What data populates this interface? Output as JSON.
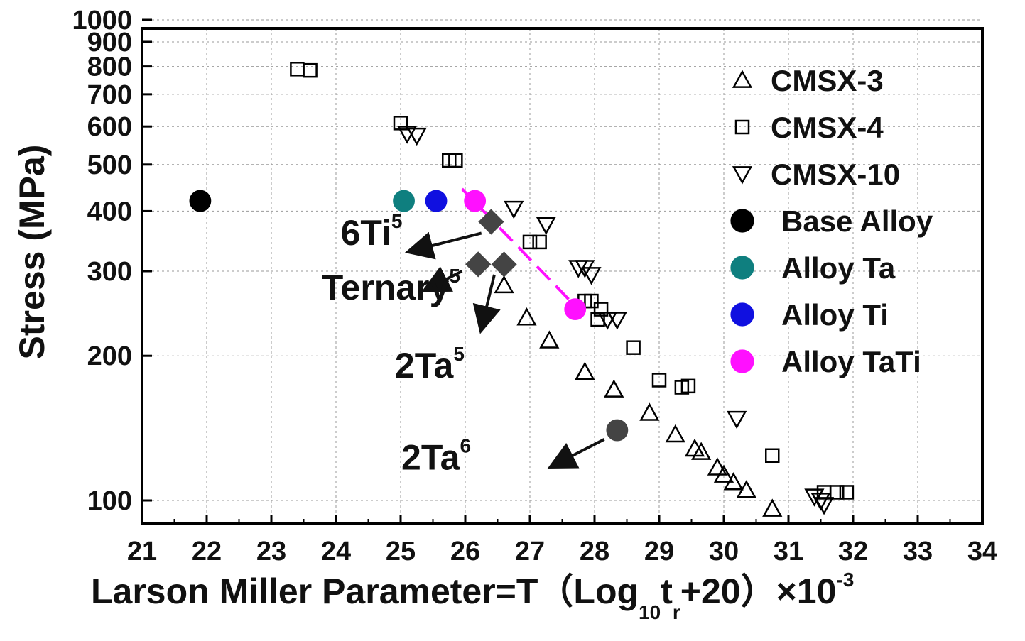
{
  "chart_data": {
    "type": "scatter",
    "xlabel": {
      "main": "Larson Miller Parameter=T（Log",
      "sub1": "10",
      "mid": "t",
      "sub2": "r",
      "tail": "+20）×10",
      "sup": "-3"
    },
    "ylabel": "Stress (MPa)",
    "xlim": [
      21,
      34
    ],
    "ylim": [
      90,
      1000
    ],
    "yscale": "log",
    "x_ticks": [
      "21",
      "22",
      "23",
      "24",
      "25",
      "26",
      "27",
      "28",
      "29",
      "30",
      "31",
      "32",
      "33",
      "34"
    ],
    "y_ticks": [
      {
        "value": 100,
        "label": "100"
      },
      {
        "value": 200,
        "label": "200"
      },
      {
        "value": 300,
        "label": "300"
      },
      {
        "value": 400,
        "label": "400"
      },
      {
        "value": 500,
        "label": "500"
      },
      {
        "value": 600,
        "label": "600"
      },
      {
        "value": 700,
        "label": "700"
      },
      {
        "value": 800,
        "label": "800"
      },
      {
        "value": 900,
        "label": "900"
      },
      {
        "value": 1000,
        "label": "1000"
      }
    ],
    "grid": true,
    "legend_position": "top-right",
    "series": [
      {
        "name": "CMSX-3",
        "marker": "triangle-up",
        "filled": false,
        "color": "#000000",
        "points": [
          [
            26.6,
            280
          ],
          [
            26.95,
            240
          ],
          [
            27.3,
            215
          ],
          [
            27.85,
            185
          ],
          [
            28.3,
            170
          ],
          [
            28.85,
            152
          ],
          [
            29.25,
            137
          ],
          [
            29.55,
            128
          ],
          [
            29.65,
            126
          ],
          [
            29.9,
            117
          ],
          [
            30.0,
            113
          ],
          [
            30.15,
            109
          ],
          [
            30.35,
            105
          ],
          [
            30.75,
            96
          ]
        ]
      },
      {
        "name": "CMSX-4",
        "marker": "square",
        "filled": false,
        "color": "#000000",
        "points": [
          [
            23.4,
            790
          ],
          [
            23.6,
            785
          ],
          [
            25.0,
            610
          ],
          [
            25.75,
            510
          ],
          [
            25.85,
            510
          ],
          [
            27.0,
            345
          ],
          [
            27.15,
            345
          ],
          [
            27.85,
            260
          ],
          [
            27.95,
            260
          ],
          [
            28.1,
            250
          ],
          [
            28.05,
            238
          ],
          [
            28.6,
            208
          ],
          [
            29.0,
            178
          ],
          [
            29.35,
            172
          ],
          [
            29.45,
            173
          ],
          [
            30.75,
            124
          ],
          [
            31.55,
            104
          ],
          [
            31.75,
            104
          ],
          [
            31.9,
            104
          ]
        ]
      },
      {
        "name": "CMSX-10",
        "marker": "triangle-down",
        "filled": false,
        "color": "#000000",
        "points": [
          [
            25.1,
            580
          ],
          [
            25.25,
            575
          ],
          [
            26.75,
            405
          ],
          [
            27.25,
            375
          ],
          [
            27.75,
            305
          ],
          [
            27.85,
            305
          ],
          [
            27.95,
            295
          ],
          [
            28.2,
            238
          ],
          [
            28.35,
            238
          ],
          [
            30.2,
            148
          ],
          [
            31.4,
            102
          ],
          [
            31.5,
            100
          ],
          [
            31.55,
            98
          ]
        ]
      },
      {
        "name": "Base Alloy",
        "marker": "circle",
        "filled": true,
        "color": "#000000",
        "points": [
          [
            21.9,
            420
          ]
        ]
      },
      {
        "name": "Alloy Ta",
        "marker": "circle",
        "filled": true,
        "color": "#0f7f7f",
        "points": [
          [
            25.05,
            420
          ]
        ]
      },
      {
        "name": "Alloy Ti",
        "marker": "circle",
        "filled": true,
        "color": "#1010e0",
        "points": [
          [
            25.55,
            420
          ]
        ]
      },
      {
        "name": "Alloy TaTi",
        "marker": "circle",
        "filled": true,
        "color": "#ff10ff",
        "points": [
          [
            26.15,
            420
          ],
          [
            27.7,
            250
          ]
        ]
      }
    ],
    "extra_markers": [
      {
        "marker": "diamond",
        "color": "#444444",
        "points": [
          [
            26.4,
            380
          ],
          [
            26.2,
            310
          ],
          [
            26.6,
            310
          ]
        ]
      },
      {
        "marker": "circle",
        "color": "#444444",
        "points": [
          [
            28.35,
            140
          ]
        ]
      }
    ],
    "trend_line": {
      "color": "#ff10ff",
      "dash": true,
      "from": [
        25.95,
        445
      ],
      "to": [
        27.65,
        258
      ]
    },
    "annotations": [
      {
        "text": "6Ti",
        "sup": "5",
        "tx": 24.55,
        "ty": 340,
        "from": [
          26.25,
          360
        ],
        "to": [
          25.15,
          330
        ]
      },
      {
        "text": "Ternary",
        "sup": "5",
        "tx": 24.85,
        "ty": 262,
        "from": [
          25.95,
          300
        ],
        "to": [
          25.4,
          275
        ]
      },
      {
        "text": "2Ta",
        "sup": "5",
        "tx": 25.45,
        "ty": 180,
        "from": [
          26.45,
          295
        ],
        "to": [
          26.25,
          228
        ]
      },
      {
        "text": "2Ta",
        "sup": "6",
        "tx": 25.55,
        "ty": 116,
        "from": [
          28.15,
          134
        ],
        "to": [
          27.35,
          118
        ]
      }
    ]
  }
}
